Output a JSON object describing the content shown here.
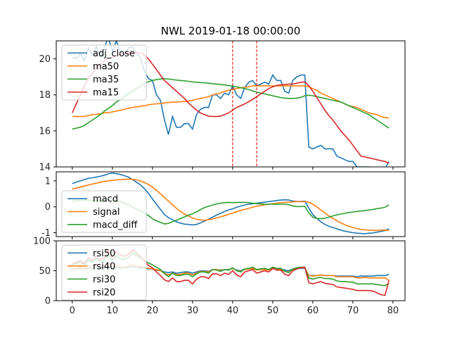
{
  "chart_data": {
    "title": "NWL 2019-01-18 00:00:00",
    "x_ticks": [
      0,
      10,
      20,
      30,
      40,
      50,
      60,
      70,
      80
    ],
    "xlim": [
      -4,
      83
    ],
    "vlines": [
      40,
      46
    ],
    "vline_color": "#e00000",
    "panels": [
      {
        "id": "price",
        "type": "line",
        "ylim": [
          14,
          21
        ],
        "y_ticks": [
          14,
          16,
          18,
          20
        ],
        "legend": "upper-left",
        "series": [
          {
            "name": "adj_close",
            "color": "#1f77b4",
            "y": [
              20.1,
              20.0,
              20.3,
              19.9,
              20.6,
              20.2,
              20.7,
              20.1,
              20.6,
              21.2,
              20.4,
              21.0,
              20.4,
              20.2,
              20.6,
              20.7,
              20.3,
              20.1,
              19.3,
              18.9,
              18.8,
              18.0,
              17.7,
              16.6,
              15.8,
              16.8,
              16.2,
              16.2,
              16.4,
              16.4,
              16.1,
              16.9,
              17.2,
              17.3,
              17.3,
              18.0,
              18.0,
              17.8,
              18.1,
              18.0,
              18.5,
              18.0,
              17.8,
              18.4,
              18.7,
              18.8,
              18.5,
              18.6,
              18.7,
              18.6,
              19.1,
              18.8,
              18.8,
              18.2,
              18.1,
              18.8,
              19.0,
              19.1,
              19.1,
              15.1,
              15.0,
              15.1,
              15.2,
              15.0,
              15.0,
              15.0,
              14.6,
              14.5,
              14.4,
              14.3,
              14.3,
              14.0,
              14.0,
              14.0,
              14.0,
              13.9,
              13.9,
              13.9,
              13.9,
              14.3
            ]
          },
          {
            "name": "ma50",
            "color": "#ff7f0e",
            "y": [
              16.8,
              16.8,
              16.8,
              16.8,
              16.85,
              16.9,
              16.92,
              16.95,
              17.0,
              17.02,
              17.05,
              17.1,
              17.15,
              17.2,
              17.25,
              17.3,
              17.33,
              17.37,
              17.4,
              17.45,
              17.48,
              17.5,
              17.52,
              17.55,
              17.57,
              17.6,
              17.6,
              17.62,
              17.63,
              17.65,
              17.7,
              17.75,
              17.8,
              17.85,
              17.9,
              18.0,
              18.05,
              18.1,
              18.2,
              18.25,
              18.3,
              18.35,
              18.4,
              18.42,
              18.45,
              18.5,
              18.5,
              18.5,
              18.5,
              18.5,
              18.5,
              18.5,
              18.5,
              18.5,
              18.5,
              18.5,
              18.5,
              18.5,
              18.5,
              18.45,
              18.35,
              18.25,
              18.1,
              18.0,
              17.9,
              17.8,
              17.7,
              17.6,
              17.5,
              17.4,
              17.35,
              17.3,
              17.2,
              17.1,
              17.0,
              16.95,
              16.9,
              16.8,
              16.75,
              16.7
            ]
          },
          {
            "name": "ma35",
            "color": "#2ca02c",
            "y": [
              16.1,
              16.15,
              16.2,
              16.3,
              16.45,
              16.6,
              16.75,
              16.9,
              17.1,
              17.25,
              17.4,
              17.6,
              17.75,
              17.9,
              18.05,
              18.2,
              18.35,
              18.5,
              18.65,
              18.72,
              18.8,
              18.85,
              18.88,
              18.9,
              18.88,
              18.85,
              18.82,
              18.8,
              18.78,
              18.75,
              18.72,
              18.7,
              18.68,
              18.67,
              18.65,
              18.62,
              18.6,
              18.58,
              18.55,
              18.52,
              18.48,
              18.45,
              18.4,
              18.35,
              18.3,
              18.22,
              18.15,
              18.1,
              18.05,
              18.0,
              17.95,
              17.9,
              17.85,
              17.82,
              17.8,
              17.8,
              17.82,
              17.86,
              17.95,
              17.98,
              17.95,
              17.9,
              17.85,
              17.8,
              17.75,
              17.7,
              17.65,
              17.6,
              17.5,
              17.4,
              17.3,
              17.2,
              17.1,
              17.0,
              16.9,
              16.75,
              16.6,
              16.45,
              16.3,
              16.15
            ]
          },
          {
            "name": "ma15",
            "color": "#d62728",
            "y": [
              17.0,
              17.5,
              18.0,
              18.5,
              18.9,
              19.2,
              19.5,
              19.7,
              19.9,
              20.0,
              20.1,
              20.2,
              20.25,
              20.3,
              20.32,
              20.34,
              20.35,
              20.33,
              20.2,
              20.0,
              19.7,
              19.4,
              19.1,
              18.8,
              18.6,
              18.4,
              18.2,
              18.0,
              17.8,
              17.55,
              17.35,
              17.15,
              17.0,
              16.9,
              16.82,
              16.8,
              16.8,
              16.82,
              16.9,
              17.0,
              17.15,
              17.3,
              17.4,
              17.5,
              17.62,
              17.75,
              17.9,
              18.05,
              18.2,
              18.35,
              18.45,
              18.52,
              18.55,
              18.57,
              18.6,
              18.6,
              18.65,
              18.7,
              18.72,
              18.5,
              18.2,
              17.85,
              17.5,
              17.15,
              16.85,
              16.6,
              16.3,
              16.0,
              15.75,
              15.5,
              15.2,
              14.9,
              14.6,
              14.55,
              14.5,
              14.45,
              14.4,
              14.35,
              14.3,
              14.2
            ]
          }
        ]
      },
      {
        "id": "macd",
        "type": "line",
        "ylim": [
          -1.15,
          1.35
        ],
        "y_ticks": [
          -1,
          0,
          1
        ],
        "legend": "lower-left",
        "series": [
          {
            "name": "macd",
            "color": "#1f77b4",
            "y": [
              0.9,
              0.95,
              1.0,
              1.05,
              1.1,
              1.12,
              1.15,
              1.18,
              1.22,
              1.27,
              1.3,
              1.28,
              1.25,
              1.2,
              1.15,
              1.05,
              0.95,
              0.85,
              0.7,
              0.52,
              0.3,
              0.1,
              -0.1,
              -0.3,
              -0.42,
              -0.5,
              -0.58,
              -0.63,
              -0.67,
              -0.68,
              -0.7,
              -0.68,
              -0.62,
              -0.55,
              -0.48,
              -0.4,
              -0.32,
              -0.25,
              -0.18,
              -0.12,
              -0.08,
              -0.02,
              0.03,
              0.07,
              0.1,
              0.12,
              0.14,
              0.16,
              0.18,
              0.2,
              0.22,
              0.24,
              0.26,
              0.27,
              0.26,
              0.22,
              0.21,
              0.21,
              0.22,
              -0.05,
              -0.3,
              -0.45,
              -0.58,
              -0.68,
              -0.75,
              -0.8,
              -0.85,
              -0.9,
              -0.94,
              -0.97,
              -1.0,
              -1.02,
              -1.03,
              -1.04,
              -1.02,
              -1.01,
              -0.98,
              -0.95,
              -0.92,
              -0.85
            ]
          },
          {
            "name": "signal",
            "color": "#ff7f0e",
            "y": [
              0.68,
              0.72,
              0.76,
              0.8,
              0.84,
              0.88,
              0.91,
              0.95,
              0.98,
              1.0,
              1.02,
              1.04,
              1.05,
              1.06,
              1.07,
              1.06,
              1.04,
              1.0,
              0.94,
              0.86,
              0.76,
              0.64,
              0.5,
              0.36,
              0.22,
              0.08,
              -0.06,
              -0.18,
              -0.28,
              -0.36,
              -0.43,
              -0.48,
              -0.51,
              -0.52,
              -0.5,
              -0.47,
              -0.43,
              -0.39,
              -0.34,
              -0.29,
              -0.24,
              -0.19,
              -0.14,
              -0.1,
              -0.06,
              -0.02,
              0.02,
              0.05,
              0.08,
              0.1,
              0.12,
              0.14,
              0.16,
              0.17,
              0.18,
              0.19,
              0.2,
              0.2,
              0.2,
              0.18,
              0.1,
              0.0,
              -0.12,
              -0.24,
              -0.35,
              -0.45,
              -0.54,
              -0.62,
              -0.69,
              -0.75,
              -0.8,
              -0.84,
              -0.87,
              -0.89,
              -0.9,
              -0.91,
              -0.91,
              -0.9,
              -0.9,
              -0.92
            ]
          },
          {
            "name": "macd_diff",
            "color": "#2ca02c",
            "y": [
              0.22,
              0.23,
              0.24,
              0.25,
              0.26,
              0.25,
              0.24,
              0.23,
              0.24,
              0.27,
              0.28,
              0.24,
              0.2,
              0.14,
              0.08,
              -0.01,
              -0.09,
              -0.15,
              -0.24,
              -0.34,
              -0.46,
              -0.54,
              -0.6,
              -0.66,
              -0.64,
              -0.58,
              -0.52,
              -0.45,
              -0.39,
              -0.32,
              -0.27,
              -0.2,
              -0.11,
              -0.03,
              0.02,
              0.07,
              0.11,
              0.14,
              0.16,
              0.17,
              0.16,
              0.17,
              0.17,
              0.17,
              0.16,
              0.14,
              0.12,
              0.11,
              0.1,
              0.1,
              0.1,
              0.1,
              0.1,
              0.1,
              0.08,
              0.03,
              0.01,
              0.01,
              0.02,
              -0.23,
              -0.4,
              -0.45,
              -0.46,
              -0.44,
              -0.4,
              -0.35,
              -0.31,
              -0.28,
              -0.25,
              -0.22,
              -0.2,
              -0.18,
              -0.16,
              -0.15,
              -0.12,
              -0.1,
              -0.07,
              -0.05,
              -0.02,
              0.07
            ]
          }
        ]
      },
      {
        "id": "rsi",
        "type": "line",
        "ylim": [
          0,
          100
        ],
        "y_ticks": [
          0,
          50,
          100
        ],
        "legend": "upper-left",
        "series": [
          {
            "name": "rsi50",
            "color": "#1f77b4",
            "y": [
              52,
              53,
              54,
              52,
              55,
              54,
              56,
              54,
              55,
              57,
              55,
              56,
              55,
              55,
              56,
              57,
              56,
              55,
              54,
              53,
              53,
              51,
              50,
              48,
              47,
              48,
              46,
              47,
              48,
              48,
              46,
              48,
              50,
              50,
              49,
              52,
              52,
              51,
              52,
              52,
              54,
              51,
              50,
              53,
              53,
              54,
              52,
              53,
              53,
              52,
              54,
              53,
              53,
              51,
              50,
              53,
              54,
              54,
              54,
              42,
              42,
              42,
              43,
              42,
              42,
              42,
              41,
              41,
              41,
              41,
              41,
              40,
              41,
              41,
              41,
              41,
              42,
              42,
              42,
              44
            ]
          },
          {
            "name": "rsi40",
            "color": "#ff7f0e",
            "y": [
              53,
              54,
              56,
              52,
              58,
              55,
              60,
              55,
              58,
              62,
              56,
              60,
              56,
              56,
              58,
              60,
              57,
              57,
              55,
              54,
              53,
              52,
              50,
              46,
              43,
              46,
              44,
              44,
              46,
              46,
              43,
              46,
              49,
              49,
              48,
              52,
              52,
              50,
              52,
              51,
              54,
              50,
              49,
              52,
              53,
              54,
              51,
              52,
              52,
              51,
              54,
              52,
              52,
              49,
              48,
              52,
              54,
              55,
              55,
              42,
              41,
              42,
              43,
              42,
              42,
              42,
              40,
              40,
              40,
              40,
              40,
              38,
              38,
              39,
              38,
              38,
              38,
              38,
              38,
              34
            ]
          },
          {
            "name": "rsi30",
            "color": "#2ca02c",
            "y": [
              60,
              62,
              64,
              60,
              68,
              64,
              70,
              65,
              68,
              76,
              68,
              75,
              70,
              69,
              72,
              80,
              76,
              72,
              67,
              63,
              60,
              56,
              52,
              45,
              40,
              46,
              42,
              42,
              44,
              44,
              40,
              45,
              48,
              48,
              46,
              52,
              51,
              49,
              52,
              51,
              55,
              50,
              48,
              53,
              54,
              56,
              52,
              53,
              54,
              52,
              56,
              54,
              54,
              49,
              47,
              53,
              55,
              56,
              56,
              38,
              36,
              38,
              39,
              37,
              37,
              36,
              33,
              32,
              32,
              31,
              31,
              28,
              28,
              28,
              28,
              28,
              27,
              26,
              25,
              29
            ]
          },
          {
            "name": "rsi20",
            "color": "#d62728",
            "y": [
              62,
              64,
              67,
              62,
              72,
              67,
              75,
              68,
              72,
              85,
              72,
              82,
              76,
              74,
              78,
              85,
              80,
              74,
              66,
              59,
              55,
              48,
              42,
              35,
              32,
              38,
              32,
              32,
              34,
              34,
              28,
              36,
              40,
              40,
              37,
              45,
              45,
              42,
              46,
              44,
              50,
              43,
              40,
              48,
              50,
              52,
              46,
              48,
              50,
              48,
              54,
              51,
              51,
              44,
              42,
              50,
              53,
              55,
              56,
              30,
              28,
              30,
              32,
              29,
              28,
              27,
              23,
              22,
              21,
              20,
              19,
              17,
              17,
              17,
              17,
              16,
              13,
              10,
              9,
              34
            ]
          }
        ]
      }
    ]
  }
}
